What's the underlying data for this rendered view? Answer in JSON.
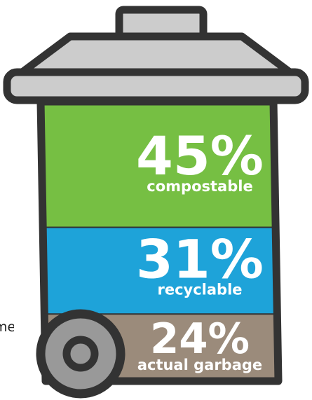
{
  "chart_data": {
    "type": "bar",
    "categories": [
      "compostable",
      "recyclable",
      "actual garbage"
    ],
    "values": [
      45,
      31,
      24
    ],
    "labels": [
      "45%",
      "31%",
      "24%"
    ],
    "colors": [
      "#76bf43",
      "#1ea3d9",
      "#9b8b7b"
    ]
  },
  "edge_text": "me",
  "colors": {
    "outline": "#333333",
    "lid": "#cccccc",
    "wheel": "#999999"
  }
}
